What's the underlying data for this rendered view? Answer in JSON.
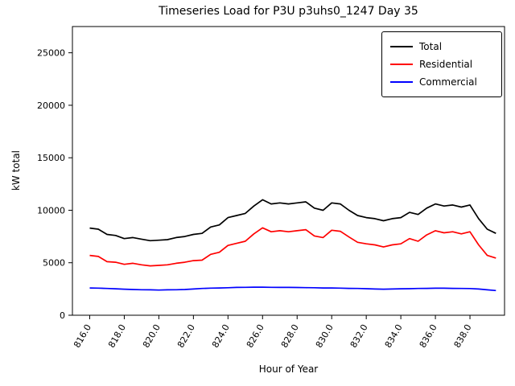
{
  "chart_data": {
    "type": "line",
    "title": "Timeseries Load for P3U p3uhs0_1247  Day 35",
    "xlabel": "Hour of Year",
    "ylabel": "kW total",
    "xlim": [
      815,
      840
    ],
    "ylim": [
      0,
      27500
    ],
    "xticks": [
      816,
      818,
      820,
      822,
      824,
      826,
      828,
      830,
      832,
      834,
      836,
      838
    ],
    "xtick_labels": [
      "816.0",
      "818.0",
      "820.0",
      "822.0",
      "824.0",
      "826.0",
      "828.0",
      "830.0",
      "832.0",
      "834.0",
      "836.0",
      "838.0"
    ],
    "yticks": [
      0,
      5000,
      10000,
      15000,
      20000,
      25000
    ],
    "ytick_labels": [
      "0",
      "5000",
      "10000",
      "15000",
      "20000",
      "25000"
    ],
    "grid": false,
    "legend_position": "upper right",
    "x": [
      816,
      816.5,
      817,
      817.5,
      818,
      818.5,
      819,
      819.5,
      820,
      820.5,
      821,
      821.5,
      822,
      822.5,
      823,
      823.5,
      824,
      824.5,
      825,
      825.5,
      826,
      826.5,
      827,
      827.5,
      828,
      828.5,
      829,
      829.5,
      830,
      830.5,
      831,
      831.5,
      832,
      832.5,
      833,
      833.5,
      834,
      834.5,
      835,
      835.5,
      836,
      836.5,
      837,
      837.5,
      838,
      838.5,
      839,
      839.5
    ],
    "series": [
      {
        "name": "Total",
        "color": "#000000",
        "values": [
          8300,
          8200,
          7700,
          7600,
          7300,
          7400,
          7250,
          7100,
          7150,
          7200,
          7400,
          7500,
          7700,
          7800,
          8400,
          8600,
          9300,
          9500,
          9700,
          10400,
          11000,
          10600,
          10700,
          10600,
          10700,
          10800,
          10200,
          10000,
          10700,
          10600,
          10000,
          9500,
          9300,
          9200,
          9000,
          9200,
          9300,
          9800,
          9600,
          10200,
          10600,
          10400,
          10500,
          10300,
          10500,
          9200,
          8200,
          7800
        ]
      },
      {
        "name": "Residential",
        "color": "#ff0000",
        "values": [
          5700,
          5600,
          5100,
          5050,
          4850,
          4950,
          4800,
          4700,
          4750,
          4800,
          4950,
          5050,
          5200,
          5250,
          5800,
          6000,
          6650,
          6850,
          7050,
          7750,
          8330,
          7950,
          8050,
          7950,
          8050,
          8150,
          7550,
          7400,
          8100,
          8000,
          7450,
          6950,
          6800,
          6700,
          6500,
          6700,
          6800,
          7300,
          7050,
          7650,
          8050,
          7850,
          7950,
          7750,
          7950,
          6700,
          5700,
          5450
        ]
      },
      {
        "name": "Commercial",
        "color": "#0000ff",
        "values": [
          2600,
          2580,
          2550,
          2520,
          2480,
          2450,
          2430,
          2420,
          2400,
          2420,
          2430,
          2450,
          2500,
          2550,
          2580,
          2600,
          2620,
          2650,
          2660,
          2670,
          2670,
          2660,
          2650,
          2650,
          2640,
          2630,
          2620,
          2600,
          2600,
          2580,
          2560,
          2550,
          2530,
          2500,
          2480,
          2500,
          2520,
          2530,
          2550,
          2560,
          2570,
          2570,
          2560,
          2550,
          2540,
          2500,
          2420,
          2350
        ]
      }
    ]
  }
}
